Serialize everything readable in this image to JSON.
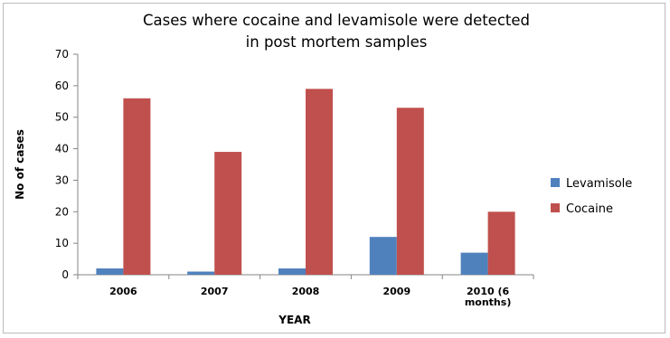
{
  "chart_data": {
    "type": "bar",
    "title_lines": [
      "Cases where cocaine and levamisole were detected",
      "in post mortem samples"
    ],
    "xlabel": "YEAR",
    "ylabel": "No of cases",
    "ylim": [
      0,
      70
    ],
    "yticks": [
      0,
      10,
      20,
      30,
      40,
      50,
      60,
      70
    ],
    "grid": false,
    "legend_position": "right",
    "categories": [
      [
        "2006"
      ],
      [
        "2007"
      ],
      [
        "2008"
      ],
      [
        "2009"
      ],
      [
        "2010 (6",
        "months)"
      ]
    ],
    "series": [
      {
        "name": "Levamisole",
        "color": "#4f81bd",
        "values": [
          2,
          1,
          2,
          12,
          7
        ]
      },
      {
        "name": "Cocaine",
        "color": "#c0504d",
        "values": [
          56,
          39,
          59,
          53,
          20
        ]
      }
    ]
  }
}
